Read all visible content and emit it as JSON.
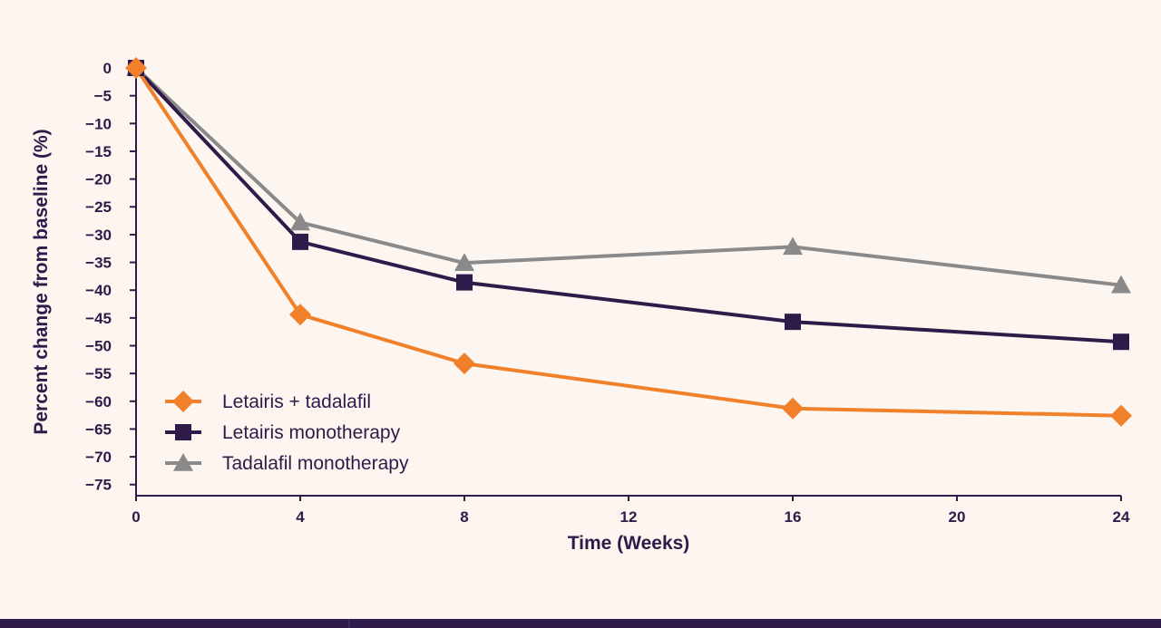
{
  "chart_data": {
    "type": "line",
    "title": "",
    "xlabel": "Time (Weeks)",
    "ylabel": "Percent change from baseline (%)",
    "xlim": [
      0,
      24
    ],
    "ylim": [
      -77,
      0
    ],
    "x_ticks": [
      0,
      4,
      8,
      12,
      16,
      20,
      24
    ],
    "x_tick_labels": [
      "0",
      "4",
      "8",
      "12",
      "16",
      "20",
      "24"
    ],
    "y_ticks": [
      0,
      -5,
      -10,
      -15,
      -20,
      -25,
      -30,
      -35,
      -40,
      -45,
      -50,
      -55,
      -60,
      -65,
      -70,
      -75
    ],
    "y_tick_labels": [
      "0",
      "−5",
      "−10",
      "−15",
      "−20",
      "−25",
      "−30",
      "−35",
      "−40",
      "−45",
      "−50",
      "−55",
      "−60",
      "−65",
      "−70",
      "−75"
    ],
    "grid": false,
    "legend_position": "bottom-left",
    "series": [
      {
        "name": "Letairis + tadalafil",
        "color": "#f0802a",
        "marker": "diamond",
        "x": [
          0,
          4,
          8,
          16,
          24
        ],
        "y": [
          0,
          -44.4,
          -53.2,
          -61.3,
          -62.6
        ]
      },
      {
        "name": "Letairis monotherapy",
        "color": "#2e1b4a",
        "marker": "square",
        "x": [
          0,
          4,
          8,
          16,
          24
        ],
        "y": [
          0,
          -31.3,
          -38.6,
          -45.7,
          -49.3
        ]
      },
      {
        "name": "Tadalafil monotherapy",
        "color": "#8a8a8a",
        "marker": "triangle",
        "x": [
          0,
          4,
          8,
          16,
          24
        ],
        "y": [
          0,
          -27.8,
          -35.1,
          -32.2,
          -39.1
        ]
      }
    ]
  }
}
